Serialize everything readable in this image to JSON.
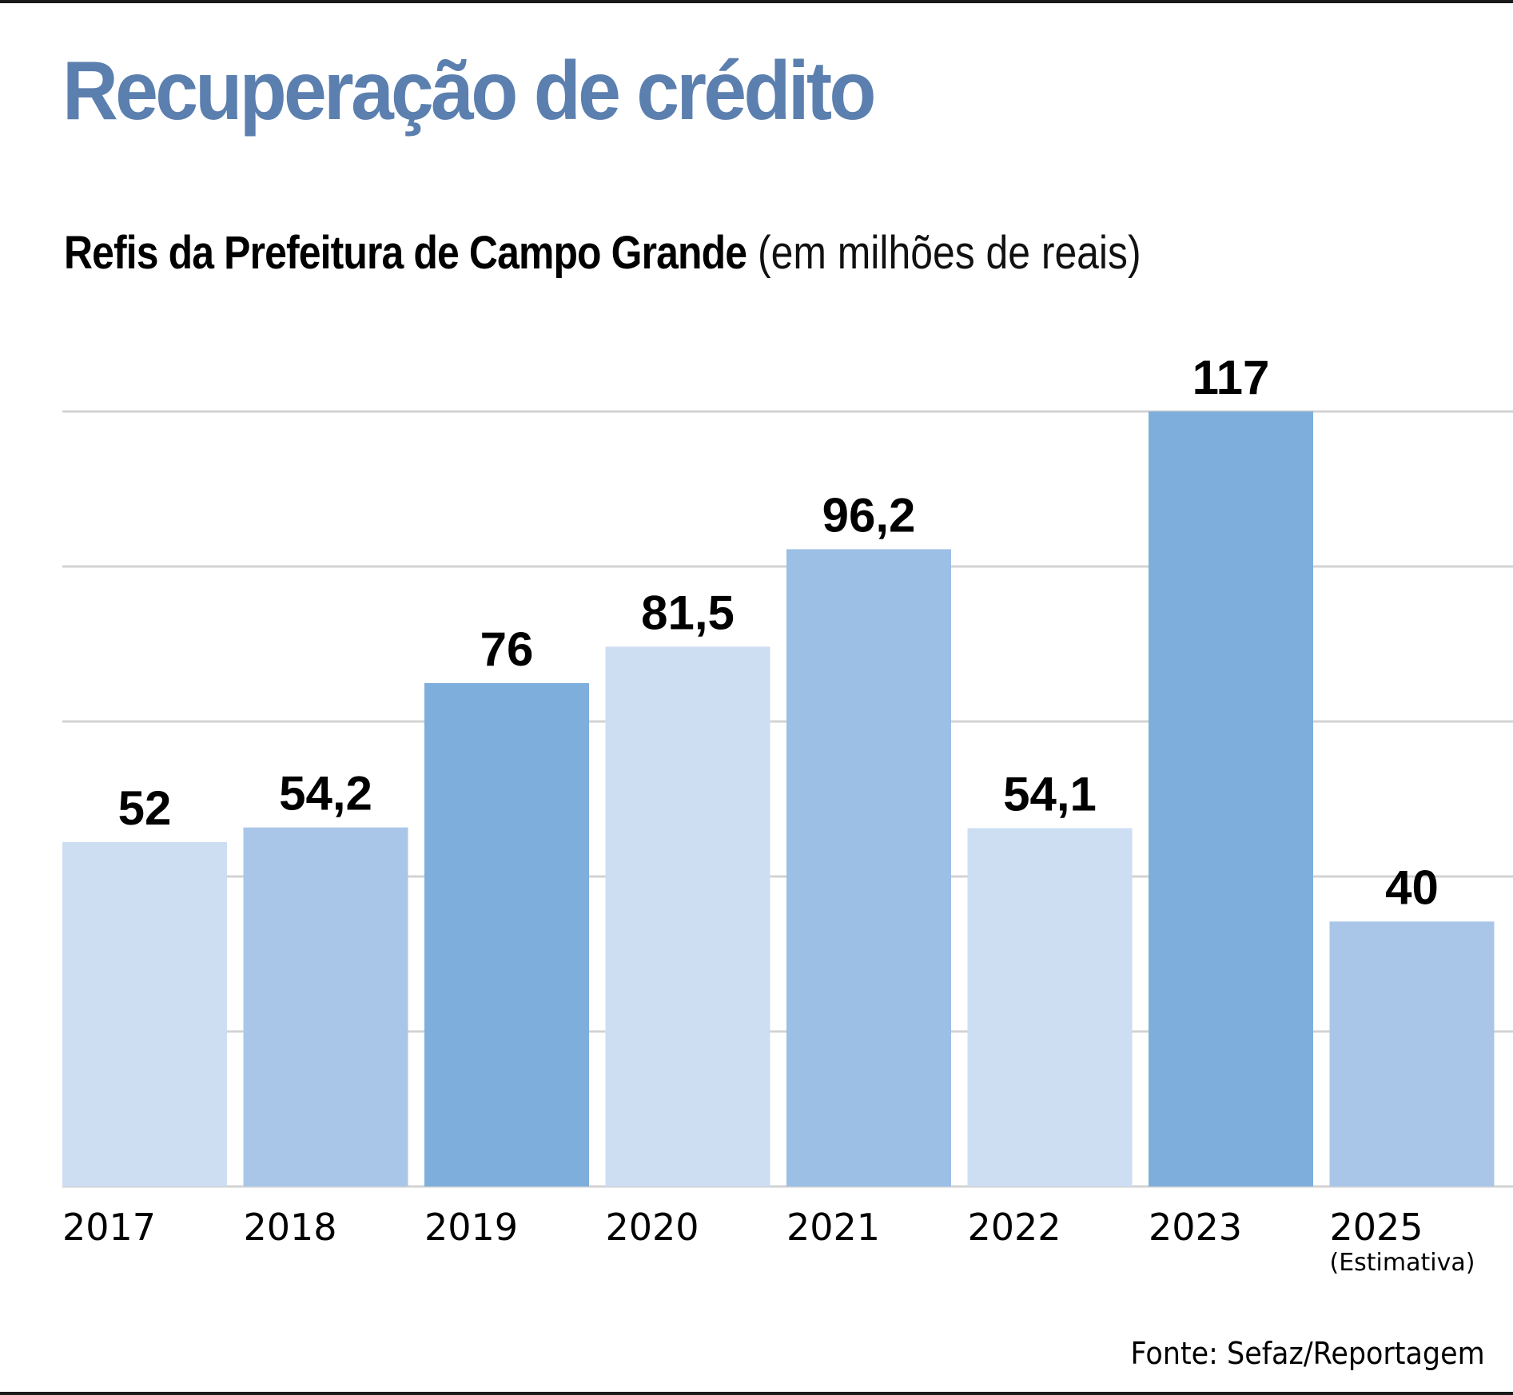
{
  "header": {
    "title": "Recuperação de crédito",
    "subtitle_bold": "Refis da Prefeitura de Campo Grande",
    "subtitle_light": "(em milhões de reais)"
  },
  "footer": {
    "source": "Fonte: Sefaz/Reportagem"
  },
  "colors": {
    "title": "#5b7fae",
    "gridline": "#d3d3d3",
    "bar_shades": [
      "#cddef3",
      "#a9c6e8",
      "#7eaedc",
      "#cddef3",
      "#9bbfe5",
      "#cddef3",
      "#7eaedc",
      "#a9c6e8"
    ]
  },
  "chart_data": {
    "type": "bar",
    "title": "Recuperação de crédito",
    "subtitle": "Refis da Prefeitura de Campo Grande (em milhões de reais)",
    "xlabel": "",
    "ylabel": "",
    "categories": [
      "2017",
      "2018",
      "2019",
      "2020",
      "2021",
      "2022",
      "2023",
      "2025"
    ],
    "category_notes": [
      "",
      "",
      "",
      "",
      "",
      "",
      "",
      "(Estimativa)"
    ],
    "values": [
      52,
      54.2,
      76,
      81.5,
      96.2,
      54.1,
      117,
      40
    ],
    "value_labels": [
      "52",
      "54,2",
      "76",
      "81,5",
      "96,2",
      "54,1",
      "117",
      "40"
    ],
    "ylim": [
      0,
      117
    ],
    "gridlines": [
      0,
      23.4,
      46.8,
      70.2,
      93.6,
      117
    ],
    "grid": true,
    "y_tick_labels_visible": false,
    "legend": "none",
    "source": "Fonte: Sefaz/Reportagem"
  }
}
